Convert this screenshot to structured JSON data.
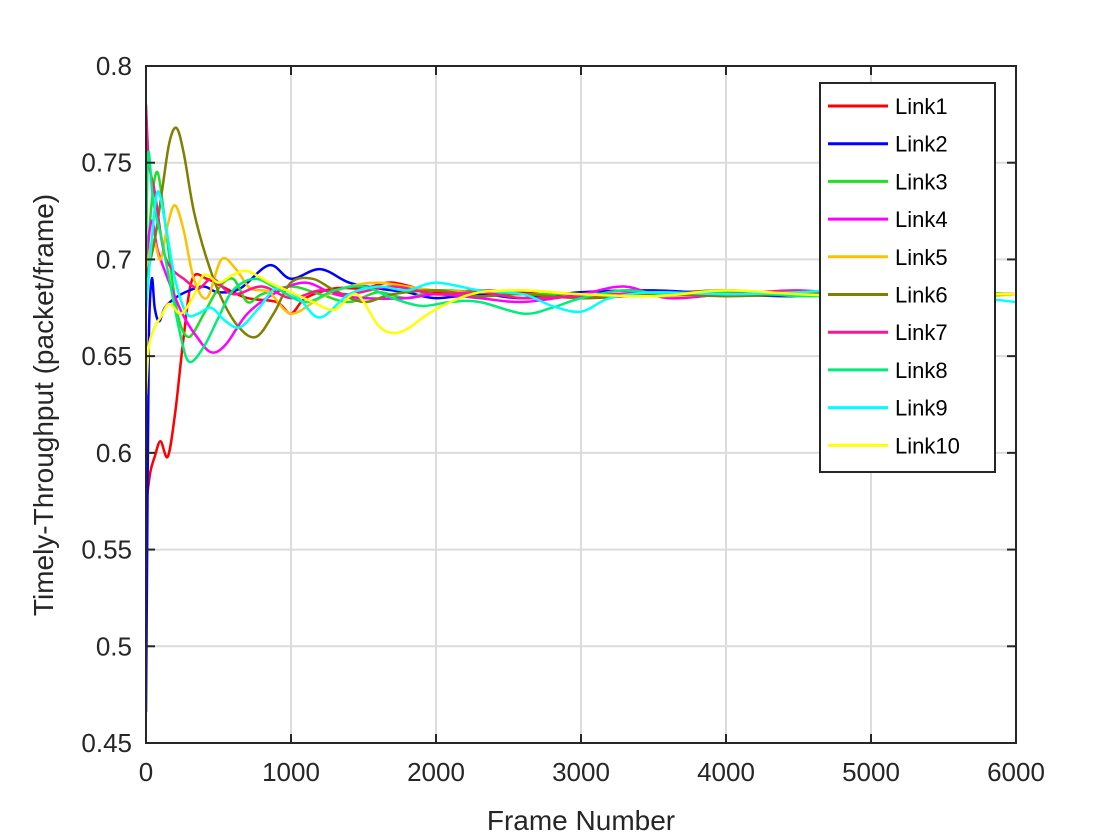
{
  "chart_data": {
    "type": "line",
    "title": "",
    "xlabel": "Frame Number",
    "ylabel": "Timely-Throughput (packet/frame)",
    "xlim": [
      0,
      6000
    ],
    "ylim": [
      0.45,
      0.8
    ],
    "xticks": [
      0,
      1000,
      2000,
      3000,
      4000,
      5000,
      6000
    ],
    "yticks": [
      0.45,
      0.5,
      0.55,
      0.6,
      0.65,
      0.7,
      0.75,
      0.8
    ],
    "xtick_labels": [
      "0",
      "1000",
      "2000",
      "3000",
      "4000",
      "5000",
      "6000"
    ],
    "ytick_labels": [
      "0.45",
      "0.5",
      "0.55",
      "0.6",
      "0.65",
      "0.7",
      "0.75",
      "0.8"
    ],
    "grid": true,
    "legend_position": "top-right",
    "series": [
      {
        "name": "Link1",
        "color": "#ff0000",
        "points": [
          [
            0,
            0.573
          ],
          [
            30,
            0.59
          ],
          [
            60,
            0.598
          ],
          [
            100,
            0.606
          ],
          [
            150,
            0.598
          ],
          [
            200,
            0.62
          ],
          [
            260,
            0.66
          ],
          [
            320,
            0.69
          ],
          [
            420,
            0.69
          ],
          [
            550,
            0.685
          ],
          [
            700,
            0.68
          ],
          [
            900,
            0.678
          ],
          [
            1000,
            0.672
          ],
          [
            1100,
            0.68
          ],
          [
            1300,
            0.685
          ],
          [
            1500,
            0.685
          ],
          [
            1700,
            0.688
          ],
          [
            2000,
            0.683
          ],
          [
            2300,
            0.684
          ],
          [
            2600,
            0.683
          ],
          [
            3000,
            0.68
          ],
          [
            3500,
            0.682
          ],
          [
            4000,
            0.684
          ],
          [
            4500,
            0.682
          ],
          [
            5000,
            0.683
          ],
          [
            5500,
            0.682
          ],
          [
            6000,
            0.682
          ]
        ]
      },
      {
        "name": "Link2",
        "color": "#0000ff",
        "points": [
          [
            0,
            0.466
          ],
          [
            10,
            0.568
          ],
          [
            20,
            0.66
          ],
          [
            40,
            0.69
          ],
          [
            60,
            0.675
          ],
          [
            90,
            0.668
          ],
          [
            130,
            0.675
          ],
          [
            200,
            0.68
          ],
          [
            300,
            0.684
          ],
          [
            400,
            0.686
          ],
          [
            500,
            0.683
          ],
          [
            650,
            0.685
          ],
          [
            850,
            0.697
          ],
          [
            1000,
            0.69
          ],
          [
            1200,
            0.695
          ],
          [
            1400,
            0.688
          ],
          [
            1600,
            0.685
          ],
          [
            1800,
            0.683
          ],
          [
            2000,
            0.68
          ],
          [
            2300,
            0.682
          ],
          [
            2600,
            0.68
          ],
          [
            3000,
            0.683
          ],
          [
            3500,
            0.684
          ],
          [
            4000,
            0.682
          ],
          [
            4500,
            0.681
          ],
          [
            5000,
            0.683
          ],
          [
            5500,
            0.682
          ],
          [
            6000,
            0.682
          ]
        ]
      },
      {
        "name": "Link3",
        "color": "#22dd22",
        "points": [
          [
            0,
            0.69
          ],
          [
            40,
            0.73
          ],
          [
            80,
            0.745
          ],
          [
            130,
            0.72
          ],
          [
            180,
            0.69
          ],
          [
            230,
            0.668
          ],
          [
            300,
            0.66
          ],
          [
            400,
            0.672
          ],
          [
            500,
            0.685
          ],
          [
            600,
            0.69
          ],
          [
            700,
            0.678
          ],
          [
            800,
            0.682
          ],
          [
            1000,
            0.686
          ],
          [
            1200,
            0.682
          ],
          [
            1400,
            0.678
          ],
          [
            1600,
            0.683
          ],
          [
            1800,
            0.68
          ],
          [
            2000,
            0.684
          ],
          [
            2300,
            0.683
          ],
          [
            2600,
            0.682
          ],
          [
            3000,
            0.682
          ],
          [
            3500,
            0.681
          ],
          [
            4000,
            0.683
          ],
          [
            4500,
            0.682
          ],
          [
            5000,
            0.682
          ],
          [
            5500,
            0.683
          ],
          [
            6000,
            0.682
          ]
        ]
      },
      {
        "name": "Link4",
        "color": "#ff00ff",
        "points": [
          [
            0,
            0.7
          ],
          [
            40,
            0.72
          ],
          [
            80,
            0.705
          ],
          [
            150,
            0.69
          ],
          [
            250,
            0.672
          ],
          [
            350,
            0.66
          ],
          [
            450,
            0.652
          ],
          [
            550,
            0.656
          ],
          [
            700,
            0.672
          ],
          [
            900,
            0.683
          ],
          [
            1100,
            0.688
          ],
          [
            1300,
            0.682
          ],
          [
            1500,
            0.68
          ],
          [
            1800,
            0.68
          ],
          [
            2000,
            0.682
          ],
          [
            2300,
            0.68
          ],
          [
            2600,
            0.678
          ],
          [
            3000,
            0.682
          ],
          [
            3300,
            0.686
          ],
          [
            3600,
            0.68
          ],
          [
            4000,
            0.682
          ],
          [
            4500,
            0.683
          ],
          [
            5000,
            0.682
          ],
          [
            5500,
            0.681
          ],
          [
            6000,
            0.682
          ]
        ]
      },
      {
        "name": "Link5",
        "color": "#ffc000",
        "points": [
          [
            0,
            0.695
          ],
          [
            50,
            0.71
          ],
          [
            100,
            0.7
          ],
          [
            150,
            0.718
          ],
          [
            200,
            0.728
          ],
          [
            260,
            0.715
          ],
          [
            330,
            0.69
          ],
          [
            420,
            0.68
          ],
          [
            520,
            0.7
          ],
          [
            620,
            0.695
          ],
          [
            720,
            0.685
          ],
          [
            850,
            0.683
          ],
          [
            1000,
            0.672
          ],
          [
            1200,
            0.68
          ],
          [
            1400,
            0.686
          ],
          [
            1600,
            0.688
          ],
          [
            1800,
            0.686
          ],
          [
            2000,
            0.684
          ],
          [
            2300,
            0.683
          ],
          [
            2600,
            0.684
          ],
          [
            3000,
            0.682
          ],
          [
            3500,
            0.681
          ],
          [
            4000,
            0.682
          ],
          [
            4500,
            0.683
          ],
          [
            5000,
            0.682
          ],
          [
            5500,
            0.68
          ],
          [
            6000,
            0.682
          ]
        ]
      },
      {
        "name": "Link6",
        "color": "#808000",
        "points": [
          [
            0,
            0.69
          ],
          [
            60,
            0.71
          ],
          [
            110,
            0.735
          ],
          [
            160,
            0.76
          ],
          [
            210,
            0.768
          ],
          [
            260,
            0.755
          ],
          [
            330,
            0.725
          ],
          [
            420,
            0.7
          ],
          [
            520,
            0.68
          ],
          [
            640,
            0.665
          ],
          [
            760,
            0.66
          ],
          [
            880,
            0.672
          ],
          [
            1000,
            0.688
          ],
          [
            1150,
            0.69
          ],
          [
            1300,
            0.684
          ],
          [
            1500,
            0.678
          ],
          [
            1700,
            0.682
          ],
          [
            2000,
            0.684
          ],
          [
            2300,
            0.681
          ],
          [
            2600,
            0.682
          ],
          [
            3000,
            0.68
          ],
          [
            3500,
            0.682
          ],
          [
            4000,
            0.681
          ],
          [
            4500,
            0.682
          ],
          [
            5000,
            0.683
          ],
          [
            5500,
            0.682
          ],
          [
            6000,
            0.682
          ]
        ]
      },
      {
        "name": "Link7",
        "color": "#ff1493",
        "points": [
          [
            0,
            0.78
          ],
          [
            20,
            0.75
          ],
          [
            60,
            0.735
          ],
          [
            120,
            0.705
          ],
          [
            180,
            0.695
          ],
          [
            260,
            0.69
          ],
          [
            360,
            0.685
          ],
          [
            460,
            0.69
          ],
          [
            600,
            0.682
          ],
          [
            800,
            0.686
          ],
          [
            1000,
            0.68
          ],
          [
            1200,
            0.684
          ],
          [
            1400,
            0.682
          ],
          [
            1700,
            0.686
          ],
          [
            2000,
            0.682
          ],
          [
            2300,
            0.683
          ],
          [
            2600,
            0.68
          ],
          [
            3000,
            0.681
          ],
          [
            3500,
            0.683
          ],
          [
            4000,
            0.682
          ],
          [
            4500,
            0.684
          ],
          [
            5000,
            0.681
          ],
          [
            5500,
            0.683
          ],
          [
            6000,
            0.682
          ]
        ]
      },
      {
        "name": "Link8",
        "color": "#00ee77",
        "points": [
          [
            0,
            0.7
          ],
          [
            15,
            0.755
          ],
          [
            50,
            0.73
          ],
          [
            110,
            0.71
          ],
          [
            170,
            0.686
          ],
          [
            240,
            0.66
          ],
          [
            300,
            0.647
          ],
          [
            400,
            0.655
          ],
          [
            500,
            0.67
          ],
          [
            600,
            0.684
          ],
          [
            750,
            0.69
          ],
          [
            900,
            0.685
          ],
          [
            1100,
            0.678
          ],
          [
            1300,
            0.684
          ],
          [
            1500,
            0.686
          ],
          [
            1700,
            0.68
          ],
          [
            1900,
            0.676
          ],
          [
            2100,
            0.678
          ],
          [
            2300,
            0.678
          ],
          [
            2600,
            0.672
          ],
          [
            2800,
            0.675
          ],
          [
            3000,
            0.68
          ],
          [
            3300,
            0.684
          ],
          [
            3600,
            0.682
          ],
          [
            4000,
            0.684
          ],
          [
            4500,
            0.681
          ],
          [
            5000,
            0.682
          ],
          [
            5500,
            0.683
          ],
          [
            6000,
            0.682
          ]
        ]
      },
      {
        "name": "Link9",
        "color": "#00ffff",
        "points": [
          [
            0,
            0.675
          ],
          [
            40,
            0.71
          ],
          [
            80,
            0.735
          ],
          [
            130,
            0.72
          ],
          [
            200,
            0.69
          ],
          [
            280,
            0.672
          ],
          [
            360,
            0.672
          ],
          [
            450,
            0.675
          ],
          [
            550,
            0.668
          ],
          [
            650,
            0.665
          ],
          [
            780,
            0.675
          ],
          [
            900,
            0.685
          ],
          [
            1050,
            0.68
          ],
          [
            1200,
            0.67
          ],
          [
            1400,
            0.682
          ],
          [
            1600,
            0.686
          ],
          [
            1800,
            0.684
          ],
          [
            2000,
            0.688
          ],
          [
            2300,
            0.684
          ],
          [
            2600,
            0.682
          ],
          [
            2800,
            0.676
          ],
          [
            3000,
            0.673
          ],
          [
            3200,
            0.68
          ],
          [
            3500,
            0.683
          ],
          [
            4000,
            0.682
          ],
          [
            4500,
            0.683
          ],
          [
            5000,
            0.685
          ],
          [
            5500,
            0.682
          ],
          [
            6000,
            0.678
          ]
        ]
      },
      {
        "name": "Link10",
        "color": "#ffff00",
        "points": [
          [
            0,
            0.63
          ],
          [
            20,
            0.655
          ],
          [
            60,
            0.665
          ],
          [
            100,
            0.67
          ],
          [
            160,
            0.677
          ],
          [
            240,
            0.672
          ],
          [
            320,
            0.68
          ],
          [
            400,
            0.692
          ],
          [
            500,
            0.688
          ],
          [
            600,
            0.692
          ],
          [
            700,
            0.694
          ],
          [
            850,
            0.688
          ],
          [
            1000,
            0.683
          ],
          [
            1150,
            0.678
          ],
          [
            1300,
            0.674
          ],
          [
            1450,
            0.682
          ],
          [
            1600,
            0.666
          ],
          [
            1700,
            0.662
          ],
          [
            1800,
            0.664
          ],
          [
            1950,
            0.672
          ],
          [
            2100,
            0.678
          ],
          [
            2300,
            0.683
          ],
          [
            2600,
            0.684
          ],
          [
            3000,
            0.682
          ],
          [
            3500,
            0.681
          ],
          [
            4000,
            0.684
          ],
          [
            4500,
            0.682
          ],
          [
            5000,
            0.681
          ],
          [
            5500,
            0.682
          ],
          [
            6000,
            0.682
          ]
        ]
      }
    ]
  }
}
